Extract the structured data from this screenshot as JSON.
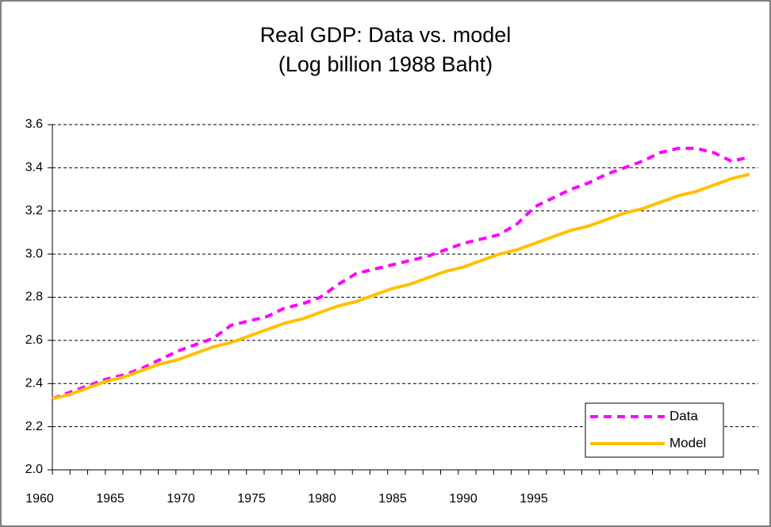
{
  "chart_data": {
    "type": "line",
    "title": "Real GDP: Data vs. model",
    "subtitle": "(Log billion 1988 Baht)",
    "categories": [
      "1960",
      null,
      null,
      null,
      "1965",
      null,
      null,
      null,
      "1970",
      null,
      null,
      null,
      "1975",
      null,
      null,
      null,
      "1980",
      null,
      null,
      null,
      "1985",
      null,
      null,
      null,
      "1990",
      null,
      null,
      null,
      "1995",
      null,
      null,
      null,
      null,
      null,
      null,
      null,
      null,
      null,
      null,
      null
    ],
    "series": [
      {
        "name": "Data",
        "color": "#ff00ff",
        "dashed": true,
        "values": [
          2.33,
          2.36,
          2.39,
          2.42,
          2.44,
          2.47,
          2.51,
          2.55,
          2.58,
          2.61,
          2.67,
          2.69,
          2.71,
          2.75,
          2.77,
          2.8,
          2.86,
          2.91,
          2.93,
          2.95,
          2.97,
          2.99,
          3.02,
          3.05,
          3.07,
          3.09,
          3.14,
          3.22,
          3.26,
          3.3,
          3.33,
          3.37,
          3.4,
          3.43,
          3.47,
          3.49,
          3.49,
          3.47,
          3.43,
          3.45
        ]
      },
      {
        "name": "Model",
        "color": "#ffc000",
        "dashed": false,
        "values": [
          2.33,
          2.35,
          2.38,
          2.41,
          2.43,
          2.46,
          2.49,
          2.51,
          2.54,
          2.57,
          2.59,
          2.62,
          2.65,
          2.68,
          2.7,
          2.73,
          2.76,
          2.78,
          2.81,
          2.84,
          2.86,
          2.89,
          2.92,
          2.94,
          2.97,
          3.0,
          3.02,
          3.05,
          3.08,
          3.11,
          3.13,
          3.16,
          3.19,
          3.21,
          3.24,
          3.27,
          3.29,
          3.32,
          3.35,
          3.37
        ]
      }
    ],
    "ylim": [
      2.0,
      3.6
    ],
    "yticks": [
      {
        "value": 2.0,
        "label": "2.0"
      },
      2.2,
      2.4,
      2.6,
      2.8,
      {
        "value": 3.0,
        "label": "3.0"
      },
      3.2,
      3.4,
      3.6
    ],
    "grid": true,
    "legend": "lower right"
  }
}
